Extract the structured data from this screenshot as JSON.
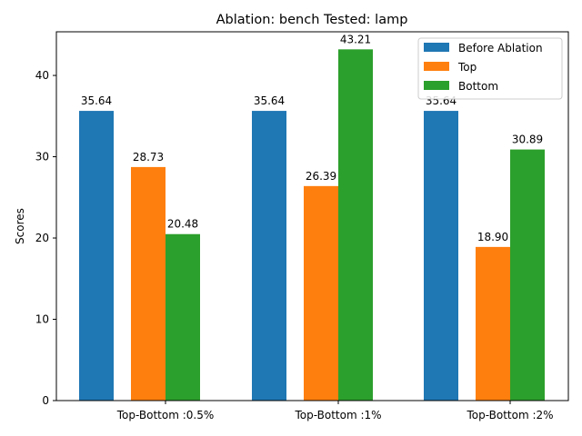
{
  "chart_data": {
    "type": "bar",
    "title": "Ablation: bench Tested: lamp",
    "xlabel": "",
    "ylabel": "Scores",
    "categories": [
      "Top-Bottom :0.5%",
      "Top-Bottom :1%",
      "Top-Bottom :2%"
    ],
    "series": [
      {
        "name": "Before Ablation",
        "color": "#1f77b4",
        "values": [
          35.64,
          35.64,
          35.64
        ]
      },
      {
        "name": "Top",
        "color": "#ff7f0e",
        "values": [
          28.73,
          26.39,
          18.9
        ]
      },
      {
        "name": "Bottom",
        "color": "#2ca02c",
        "values": [
          20.48,
          43.21,
          30.89
        ]
      }
    ],
    "ylim": [
      0,
      45.37
    ],
    "yticks": [
      0,
      10,
      20,
      30,
      40
    ],
    "legend": "top-right",
    "grid": false
  }
}
